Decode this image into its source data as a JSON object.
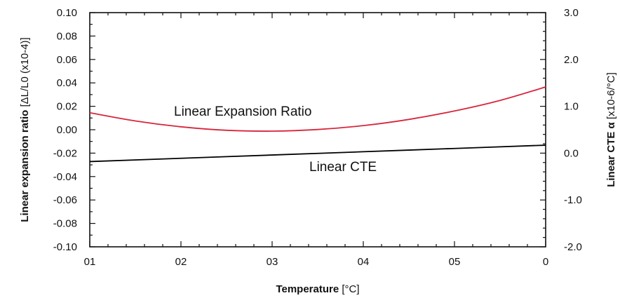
{
  "chart_data": {
    "type": "line",
    "xlabel": {
      "bold": "Temperature",
      "unit": "[°C]"
    },
    "ylabel_left": {
      "bold": "Linear expansion ratio",
      "unit": "[ΔL/L0 (x10-4)]"
    },
    "ylabel_right": {
      "bold": "Linear CTE α",
      "unit": "[x10-6/°C]"
    },
    "x_tick_labels": [
      "01",
      "02",
      "03",
      "04",
      "05",
      "0"
    ],
    "xlim": [
      0,
      50
    ],
    "x_ticks": [
      0,
      10,
      20,
      30,
      40,
      50
    ],
    "ylim_left": [
      -0.1,
      0.1
    ],
    "y_ticks_left": [
      "0.10",
      "0.08",
      "0.06",
      "0.04",
      "0.02",
      "0.00",
      "-0.02",
      "-0.04",
      "-0.06",
      "-0.08",
      "-0.10"
    ],
    "ylim_right": [
      -2.0,
      3.0
    ],
    "y_ticks_right": [
      "3.0",
      "2.0",
      "1.0",
      "0.0",
      "-1.0",
      "-2.0"
    ],
    "grid": false,
    "series": [
      {
        "name": "Linear Expansion Ratio",
        "axis": "left",
        "color": "#d7263d",
        "x": [
          0,
          5,
          10,
          15,
          20,
          25,
          30,
          35,
          40,
          45,
          50
        ],
        "y": [
          0.0145,
          0.0075,
          0.0025,
          -0.0005,
          -0.0012,
          0.0002,
          0.0035,
          0.0088,
          0.016,
          0.025,
          0.0365
        ]
      },
      {
        "name": "Linear CTE",
        "axis": "right",
        "color": "#000000",
        "x": [
          0,
          10,
          20,
          30,
          40,
          50
        ],
        "y": [
          -0.18,
          -0.11,
          -0.04,
          0.03,
          0.1,
          0.17
        ]
      }
    ]
  }
}
